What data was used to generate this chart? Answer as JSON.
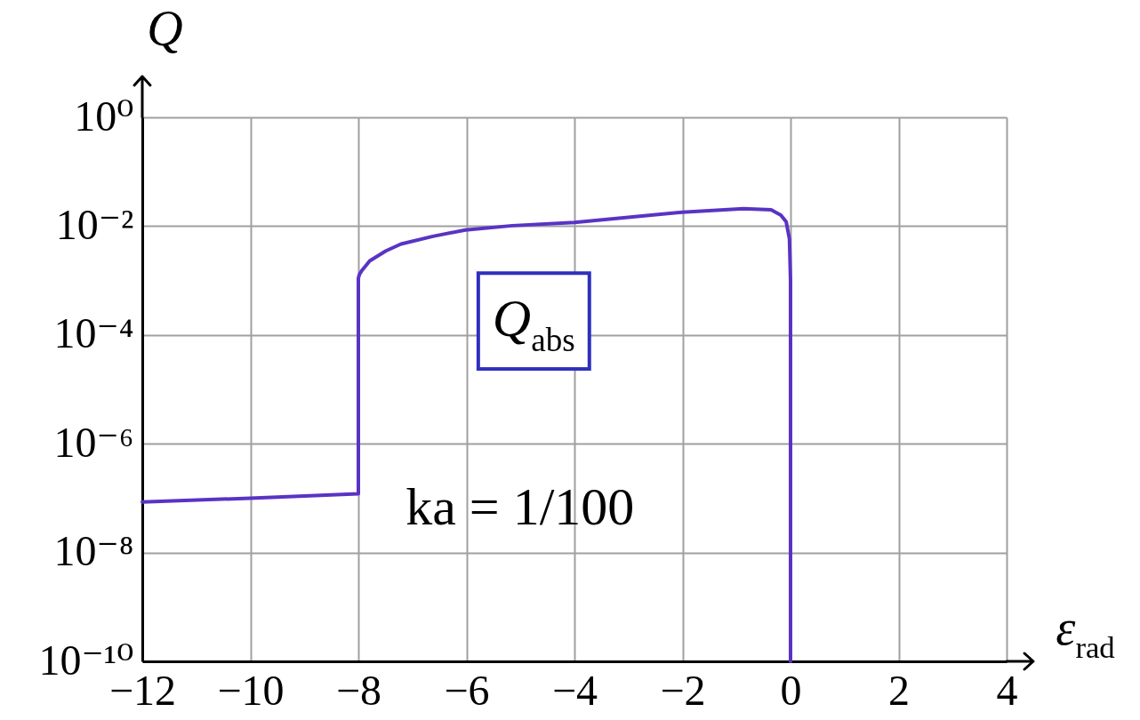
{
  "chart_data": {
    "type": "line",
    "xlabel": "ε$_{rad}$",
    "ylabel": "Q",
    "x": [
      -12,
      -10,
      -8,
      -8,
      -7.98,
      -7.93,
      -7.79,
      -7.49,
      -7.21,
      -6.62,
      -6.02,
      -5.15,
      -4,
      -2,
      -0.87,
      -0.36,
      -0.18,
      -0.08,
      -0.02,
      0,
      0
    ],
    "series": [
      {
        "color": "#5a33c4",
        "values": [
          8.5e-08,
          1e-07,
          1.2e-07,
          0.0011,
          0.0013,
          0.00155,
          0.0023,
          0.0035,
          0.0047,
          0.0065,
          0.0085,
          0.0102,
          0.0117,
          0.018,
          0.021,
          0.02,
          0.016,
          0.012,
          0.0058,
          0.001,
          1e-10
        ]
      }
    ],
    "xlim": [
      -12,
      4
    ],
    "ylim": [
      1e-10,
      1
    ],
    "xticks": [
      -12,
      -10,
      -8,
      -6,
      -4,
      -2,
      0,
      2,
      4
    ],
    "yticks": [
      {
        "value": 1,
        "label": "10⁰"
      },
      {
        "value": 0.01,
        "label": "10⁻²"
      },
      {
        "value": 0.0001,
        "label": "10⁻⁴"
      },
      {
        "value": 1e-06,
        "label": "10⁻⁶"
      },
      {
        "value": 1e-08,
        "label": "10⁻⁸"
      },
      {
        "value": 1e-10,
        "label": "10⁻¹⁰"
      }
    ],
    "log": true,
    "grid": true,
    "annotations": [
      "Q$_{abs}$",
      "ka = 1/100"
    ]
  }
}
